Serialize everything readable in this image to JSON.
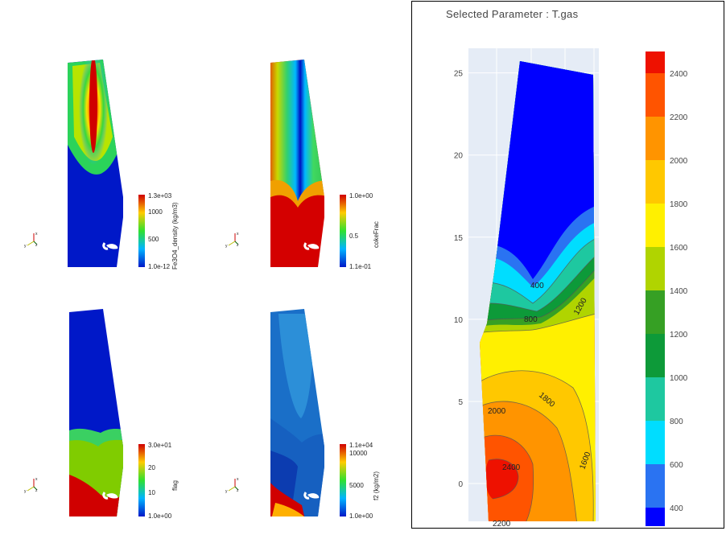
{
  "chart_data": [
    {
      "type": "heatmap",
      "variable": "Fe3O4_density (kg/m3)",
      "colorbar": {
        "ticks": [
          "1.3e+03",
          "1000",
          "500",
          "1.0e-12"
        ],
        "min": 1e-12,
        "max": 1300
      },
      "axes_triad": [
        "x",
        "y",
        "z"
      ]
    },
    {
      "type": "heatmap",
      "variable": "cokeFrac",
      "colorbar": {
        "ticks": [
          "1.0e+00",
          "0.5",
          "1.1e-01"
        ],
        "min": 0.11,
        "max": 1.0
      },
      "axes_triad": [
        "x",
        "y",
        "z"
      ]
    },
    {
      "type": "heatmap",
      "variable": "flag",
      "colorbar": {
        "ticks": [
          "3.0e+01",
          "20",
          "10",
          "1.0e+00"
        ],
        "min": 1,
        "max": 30
      },
      "axes_triad": [
        "x",
        "y",
        "z"
      ]
    },
    {
      "type": "heatmap",
      "variable": "f2 (kg/m2)",
      "colorbar": {
        "ticks": [
          "1.1e+04",
          "10000",
          "5000",
          "1.0e+00"
        ],
        "min": 1,
        "max": 11000
      },
      "axes_triad": [
        "x",
        "y",
        "z"
      ]
    },
    {
      "type": "heatmap",
      "title": "Selected Parameter : T.gas",
      "y_ticks": [
        "25",
        "20",
        "15",
        "10",
        "5",
        "0"
      ],
      "ylim": [
        -2.3,
        26.5
      ],
      "contour_labels": [
        "400",
        "800",
        "1200",
        "1600",
        "1800",
        "2000",
        "2200",
        "2400"
      ],
      "colorbar": {
        "ticks": [
          "2400",
          "2200",
          "2000",
          "1800",
          "1600",
          "1400",
          "1200",
          "1000",
          "800",
          "600",
          "400"
        ],
        "levels": [
          300,
          400,
          600,
          800,
          1000,
          1200,
          1400,
          1600,
          1800,
          2000,
          2200,
          2400,
          2500
        ],
        "colors": [
          "#0000ff",
          "#2a73f2",
          "#00ddff",
          "#1ec8a0",
          "#0d9a39",
          "#36a024",
          "#b0d400",
          "#fff000",
          "#ffc800",
          "#ff9400",
          "#ff5400",
          "#ee1100"
        ]
      }
    }
  ],
  "colors": {
    "jet_blue": "#0018c8",
    "jet_red": "#cc0000",
    "plot_bg": "#e5ecf6",
    "frame": "#000000"
  }
}
